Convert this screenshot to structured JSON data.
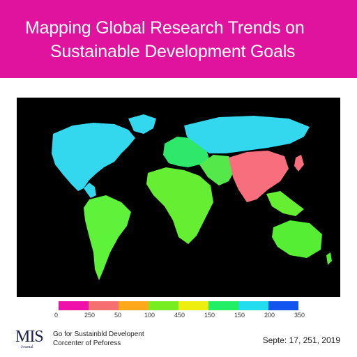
{
  "header": {
    "title_line_1": "Mapping Global Research Trends on",
    "title_line_2": "Sustainable Development Goals",
    "background_color": "#e0139e"
  },
  "map": {
    "background_color": "#000000",
    "region_colors": {
      "north_america": "#33d8ef",
      "greenland": "#33d8ef",
      "south_america": "#5ef23a",
      "europe": "#2fe86a",
      "russia": "#33d8ef",
      "africa": "#66ee33",
      "middle_east": "#55e84a",
      "china_india": "#f76f7c",
      "southeast_asia": "#66ee33",
      "australia": "#55ee33"
    }
  },
  "legend": {
    "colors": [
      "#ee11aa",
      "#f77070",
      "#ffa81a",
      "#77ee22",
      "#eeee11",
      "#22ee66",
      "#22ddee",
      "#1155ee"
    ],
    "labels": [
      "0",
      "250",
      "50",
      "100",
      "450",
      "150",
      "150",
      "200",
      "350"
    ]
  },
  "footer": {
    "logo": "MIS",
    "logo_sub": "Journal",
    "org_line_1": "Go for Sustainbld Developent",
    "org_line_2": "Corcenter of Peforess",
    "date": "Septe: 17, 251, 2019"
  }
}
